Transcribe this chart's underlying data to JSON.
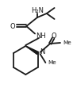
{
  "bg_color": "#ffffff",
  "line_color": "#1a1a1a",
  "text_color": "#1a1a1a",
  "bond_lw": 1.3,
  "figsize": [
    0.92,
    1.11
  ],
  "dpi": 100,
  "font_size": 6.0,
  "font_size_small": 5.2,
  "xlim": [
    0,
    92
  ],
  "ylim": [
    0,
    111
  ]
}
